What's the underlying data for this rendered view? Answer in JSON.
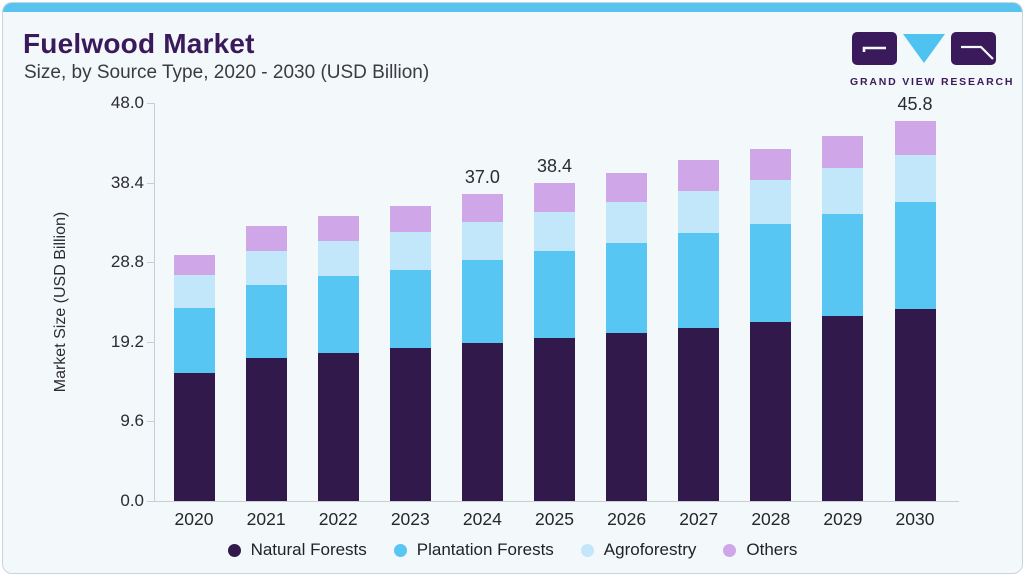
{
  "header": {
    "title": "Fuelwood Market",
    "subtitle": "Size, by Source Type, 2020 - 2030 (USD Billion)"
  },
  "logo": {
    "brand": "GRAND VIEW RESEARCH",
    "tile_color": "#3A1A5B",
    "triangle_color": "#4EC3EF"
  },
  "colors": {
    "accent_strip": "#58C3EF",
    "card_background": "#F3F8FB",
    "axis": "#C9CED6",
    "title_text": "#3A1A5B"
  },
  "chart_data": {
    "type": "bar",
    "stacked": true,
    "title": "Fuelwood Market Size, by Source Type, 2020 - 2030 (USD Billion)",
    "xlabel": "",
    "ylabel": "Market Size (USD Billion)",
    "ylim": [
      0,
      48
    ],
    "ytick_labels": [
      "0.0",
      "9.6",
      "19.2",
      "28.8",
      "38.4",
      "48.0"
    ],
    "grid": false,
    "legend_position": "bottom",
    "categories": [
      "2020",
      "2021",
      "2022",
      "2023",
      "2024",
      "2025",
      "2026",
      "2027",
      "2028",
      "2029",
      "2030"
    ],
    "series": [
      {
        "name": "Natural Forests",
        "color": "#32194B",
        "values": [
          15.4,
          17.2,
          17.8,
          18.4,
          19.1,
          19.6,
          20.2,
          20.9,
          21.6,
          22.3,
          23.2
        ]
      },
      {
        "name": "Plantation Forests",
        "color": "#57C6F3",
        "values": [
          7.9,
          8.9,
          9.3,
          9.5,
          10.0,
          10.5,
          10.9,
          11.4,
          11.8,
          12.3,
          12.8
        ]
      },
      {
        "name": "Agroforestry",
        "color": "#C3E7FA",
        "values": [
          3.9,
          4.1,
          4.3,
          4.5,
          4.6,
          4.7,
          4.9,
          5.1,
          5.3,
          5.6,
          5.7
        ]
      },
      {
        "name": "Others",
        "color": "#CFA7E9",
        "values": [
          2.5,
          3.0,
          3.0,
          3.2,
          3.3,
          3.6,
          3.5,
          3.7,
          3.8,
          3.8,
          4.1
        ]
      }
    ],
    "totals": [
      29.7,
      33.2,
      34.4,
      35.6,
      37.0,
      38.4,
      39.5,
      41.1,
      42.5,
      44.0,
      45.8
    ],
    "data_labels": {
      "2024": "37.0",
      "2025": "38.4",
      "2030": "45.8"
    }
  }
}
